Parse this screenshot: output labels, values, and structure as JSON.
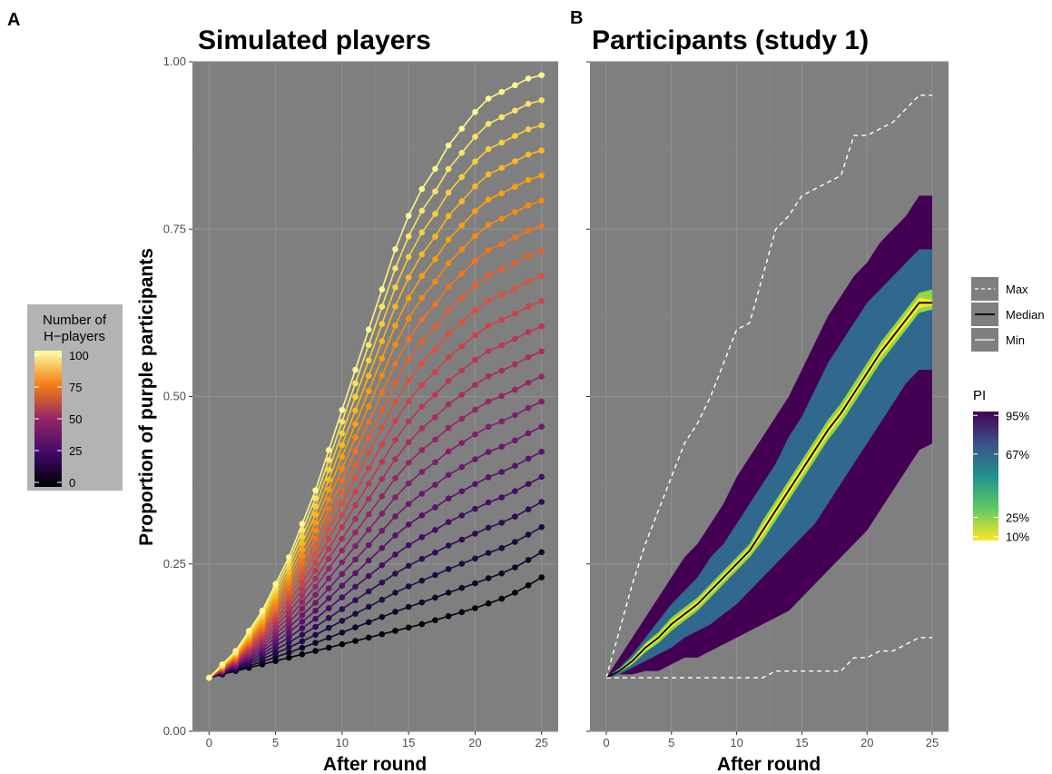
{
  "panels": {
    "a": {
      "letter": "A",
      "title": "Simulated players"
    },
    "b": {
      "letter": "B",
      "title": "Participants (study 1)"
    }
  },
  "legend_h": {
    "title_line1": "Number of",
    "title_line2": "H−players",
    "ticks": [
      "100",
      "75",
      "50",
      "25",
      "0"
    ]
  },
  "legend_lines": {
    "items": [
      "Max",
      "Median",
      "Min"
    ]
  },
  "legend_pi": {
    "title": "PI",
    "ticks": [
      "95%",
      "67%",
      "25%",
      "10%"
    ]
  },
  "chart_data": [
    {
      "type": "line",
      "title": "Simulated players",
      "xlabel": "After round",
      "ylabel": "Proportion of purple participants",
      "xlim": [
        -1.25,
        26.25
      ],
      "ylim": [
        0,
        1
      ],
      "xticks": [
        "0",
        "5",
        "10",
        "15",
        "20",
        "25"
      ],
      "yticks": [
        "0.00",
        "0.25",
        "0.50",
        "0.75",
        "1.00"
      ],
      "background": "#7f7f7f",
      "grid": true,
      "x": [
        0,
        1,
        2,
        3,
        4,
        5,
        6,
        7,
        8,
        9,
        10,
        11,
        12,
        13,
        14,
        15,
        16,
        17,
        18,
        19,
        20,
        21,
        22,
        23,
        24,
        25
      ],
      "start_value": 0.08,
      "color_variable": "Number of H-players",
      "color_range": [
        0,
        100
      ],
      "colormap": "inferno",
      "series_count": 21,
      "min_series_end": 0.23,
      "max_series_end": 0.98,
      "max_series": {
        "name": "100",
        "values": [
          0.08,
          0.1,
          0.12,
          0.15,
          0.18,
          0.22,
          0.26,
          0.31,
          0.36,
          0.42,
          0.48,
          0.54,
          0.6,
          0.66,
          0.72,
          0.77,
          0.81,
          0.84,
          0.875,
          0.9,
          0.925,
          0.945,
          0.955,
          0.965,
          0.975,
          0.98
        ]
      },
      "min_series": {
        "name": "0",
        "values": [
          0.08,
          0.085,
          0.09,
          0.095,
          0.1,
          0.105,
          0.11,
          0.115,
          0.12,
          0.125,
          0.13,
          0.135,
          0.14,
          0.145,
          0.15,
          0.155,
          0.16,
          0.166,
          0.172,
          0.178,
          0.184,
          0.191,
          0.198,
          0.207,
          0.218,
          0.23
        ]
      }
    },
    {
      "type": "area",
      "title": "Participants (study 1)",
      "xlabel": "After round",
      "ylabel": "",
      "xlim": [
        -1.25,
        26.25
      ],
      "ylim": [
        0,
        1
      ],
      "xticks": [
        "0",
        "5",
        "10",
        "15",
        "20",
        "25"
      ],
      "background": "#7f7f7f",
      "grid": true,
      "x": [
        0,
        1,
        2,
        3,
        4,
        5,
        6,
        7,
        8,
        9,
        10,
        11,
        12,
        13,
        14,
        15,
        16,
        17,
        18,
        19,
        20,
        21,
        22,
        23,
        24,
        25
      ],
      "lines": [
        {
          "name": "Max",
          "style": "dashed",
          "color": "#ffffff",
          "values": [
            0.08,
            0.15,
            0.22,
            0.28,
            0.33,
            0.38,
            0.43,
            0.46,
            0.5,
            0.55,
            0.6,
            0.61,
            0.68,
            0.75,
            0.77,
            0.8,
            0.81,
            0.82,
            0.83,
            0.89,
            0.89,
            0.9,
            0.91,
            0.93,
            0.95,
            0.95
          ]
        },
        {
          "name": "Median",
          "style": "solid",
          "color": "#000000",
          "values": [
            0.08,
            0.09,
            0.105,
            0.125,
            0.14,
            0.16,
            0.175,
            0.19,
            0.21,
            0.23,
            0.25,
            0.27,
            0.3,
            0.33,
            0.36,
            0.39,
            0.42,
            0.45,
            0.475,
            0.505,
            0.535,
            0.565,
            0.59,
            0.615,
            0.64,
            0.64
          ]
        },
        {
          "name": "Min",
          "style": "dashed",
          "color": "#ffffff",
          "values": [
            0.08,
            0.08,
            0.08,
            0.08,
            0.08,
            0.08,
            0.08,
            0.08,
            0.08,
            0.08,
            0.08,
            0.08,
            0.08,
            0.09,
            0.09,
            0.09,
            0.09,
            0.09,
            0.09,
            0.11,
            0.11,
            0.12,
            0.12,
            0.13,
            0.14,
            0.14
          ]
        }
      ],
      "bands": [
        {
          "name": "95%",
          "color": "#440154",
          "lower": [
            0.08,
            0.085,
            0.085,
            0.09,
            0.09,
            0.1,
            0.11,
            0.11,
            0.12,
            0.13,
            0.14,
            0.15,
            0.16,
            0.17,
            0.18,
            0.2,
            0.22,
            0.24,
            0.26,
            0.28,
            0.3,
            0.33,
            0.36,
            0.39,
            0.42,
            0.43
          ],
          "upper": [
            0.08,
            0.11,
            0.14,
            0.17,
            0.2,
            0.23,
            0.26,
            0.28,
            0.31,
            0.34,
            0.38,
            0.41,
            0.44,
            0.47,
            0.5,
            0.54,
            0.58,
            0.62,
            0.65,
            0.68,
            0.7,
            0.73,
            0.75,
            0.77,
            0.8,
            0.8
          ]
        },
        {
          "name": "67%",
          "color": "#31688e",
          "lower": [
            0.08,
            0.085,
            0.095,
            0.105,
            0.115,
            0.125,
            0.14,
            0.15,
            0.16,
            0.175,
            0.19,
            0.21,
            0.23,
            0.25,
            0.27,
            0.29,
            0.31,
            0.34,
            0.37,
            0.4,
            0.43,
            0.46,
            0.49,
            0.52,
            0.54,
            0.54
          ],
          "upper": [
            0.08,
            0.095,
            0.115,
            0.14,
            0.165,
            0.19,
            0.21,
            0.23,
            0.26,
            0.28,
            0.31,
            0.34,
            0.37,
            0.4,
            0.44,
            0.47,
            0.51,
            0.55,
            0.58,
            0.61,
            0.64,
            0.66,
            0.68,
            0.7,
            0.72,
            0.72
          ]
        },
        {
          "name": "25%",
          "color": "#8fd744",
          "lower": [
            0.08,
            0.088,
            0.1,
            0.118,
            0.132,
            0.15,
            0.165,
            0.18,
            0.2,
            0.22,
            0.24,
            0.26,
            0.285,
            0.315,
            0.345,
            0.375,
            0.405,
            0.435,
            0.46,
            0.49,
            0.52,
            0.55,
            0.575,
            0.6,
            0.625,
            0.63
          ],
          "upper": [
            0.08,
            0.093,
            0.11,
            0.132,
            0.148,
            0.17,
            0.185,
            0.2,
            0.22,
            0.24,
            0.26,
            0.28,
            0.315,
            0.345,
            0.375,
            0.405,
            0.435,
            0.465,
            0.49,
            0.52,
            0.55,
            0.58,
            0.605,
            0.63,
            0.655,
            0.66
          ]
        },
        {
          "name": "10%",
          "color": "#fde725",
          "lower": [
            0.08,
            0.089,
            0.102,
            0.121,
            0.136,
            0.155,
            0.17,
            0.185,
            0.205,
            0.225,
            0.245,
            0.265,
            0.292,
            0.322,
            0.352,
            0.382,
            0.412,
            0.442,
            0.468,
            0.498,
            0.528,
            0.558,
            0.582,
            0.607,
            0.632,
            0.636
          ],
          "upper": [
            0.08,
            0.091,
            0.108,
            0.129,
            0.144,
            0.165,
            0.18,
            0.195,
            0.215,
            0.235,
            0.255,
            0.275,
            0.308,
            0.338,
            0.368,
            0.398,
            0.428,
            0.458,
            0.482,
            0.512,
            0.542,
            0.572,
            0.598,
            0.623,
            0.648,
            0.644
          ]
        }
      ]
    }
  ]
}
